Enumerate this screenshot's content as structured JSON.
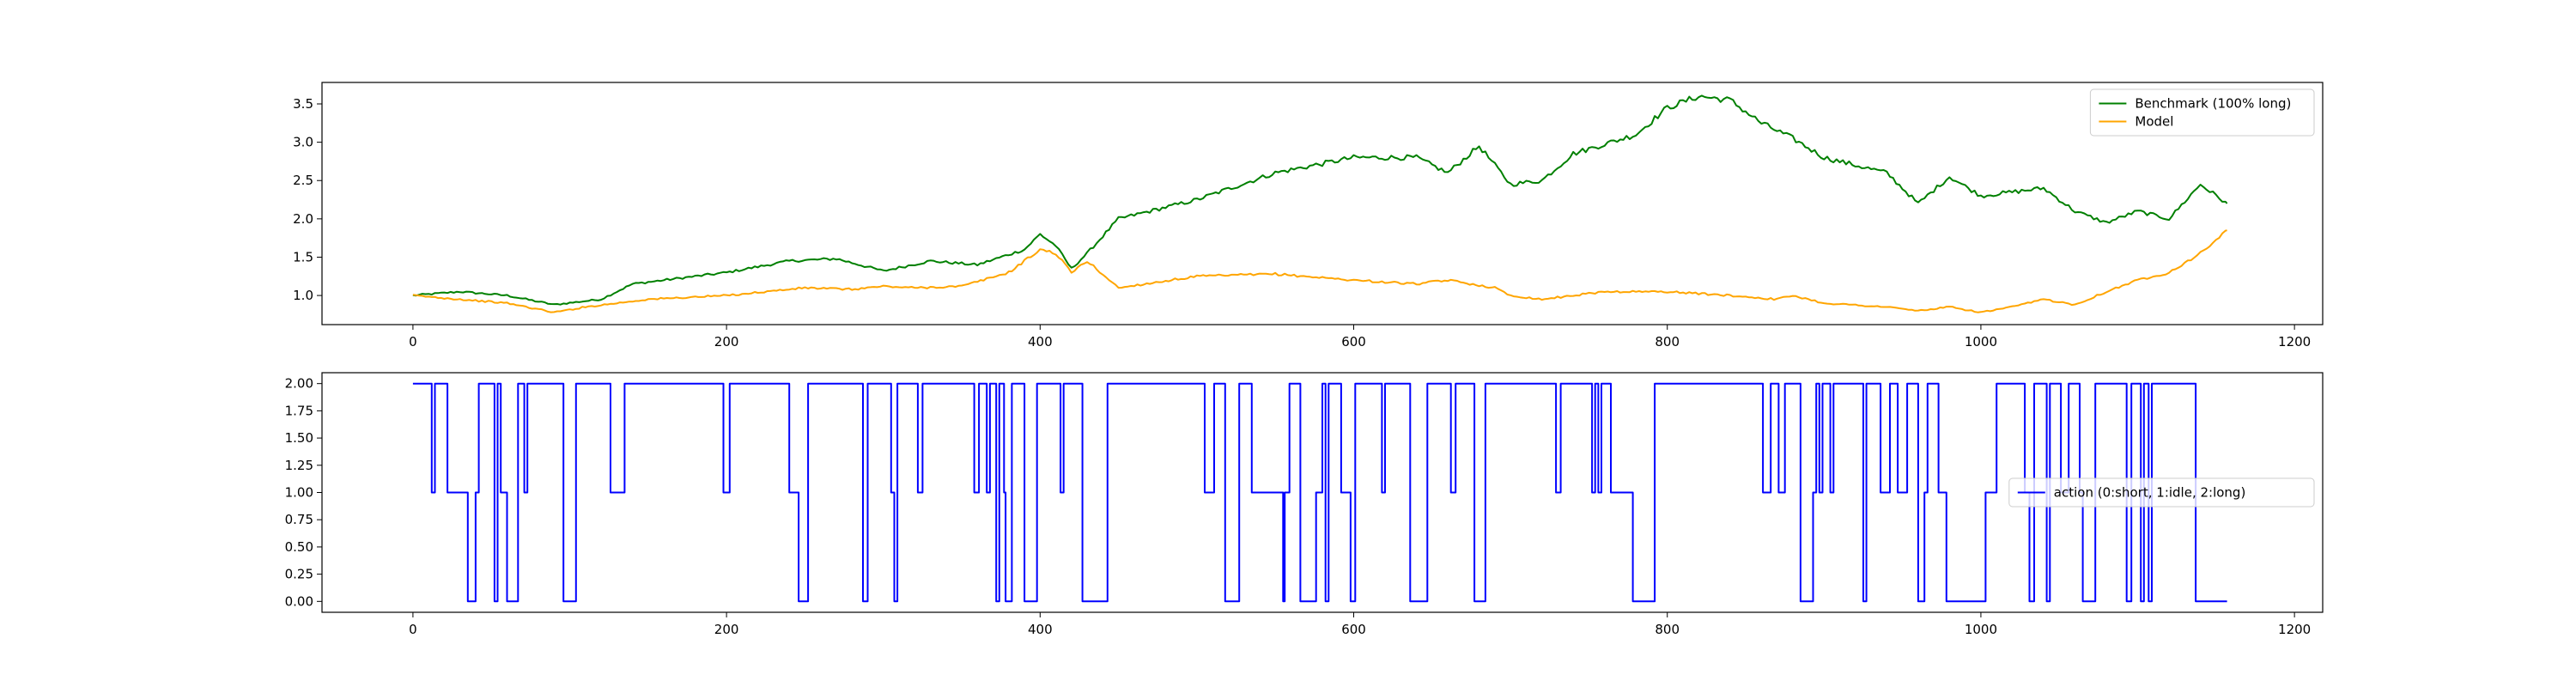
{
  "chart_data": [
    {
      "type": "line",
      "title": "",
      "xlabel": "",
      "ylabel": "",
      "xlim": [
        -58,
        1218
      ],
      "ylim": [
        0.62,
        3.78
      ],
      "xticks": [
        0,
        200,
        400,
        600,
        800,
        1000,
        1200
      ],
      "xtick_labels": [
        "0",
        "200",
        "400",
        "600",
        "800",
        "1000",
        "1200"
      ],
      "yticks": [
        1.0,
        1.5,
        2.0,
        2.5,
        3.0,
        3.5
      ],
      "ytick_labels": [
        "1.0",
        "1.5",
        "2.0",
        "2.5",
        "3.0",
        "3.5"
      ],
      "grid": false,
      "legend_position": "upper right",
      "series": [
        {
          "name": "Benchmark (100% long)",
          "color": "#008000",
          "x": [
            0,
            30,
            60,
            90,
            120,
            140,
            160,
            200,
            240,
            270,
            300,
            330,
            360,
            390,
            400,
            410,
            420,
            430,
            450,
            500,
            550,
            600,
            640,
            660,
            680,
            700,
            720,
            740,
            780,
            800,
            820,
            840,
            860,
            880,
            900,
            940,
            960,
            980,
            1000,
            1020,
            1040,
            1060,
            1080,
            1100,
            1120,
            1140,
            1157
          ],
          "y": [
            1.0,
            1.05,
            1.0,
            0.88,
            0.95,
            1.15,
            1.2,
            1.3,
            1.45,
            1.48,
            1.32,
            1.45,
            1.4,
            1.6,
            1.8,
            1.65,
            1.35,
            1.55,
            2.0,
            2.25,
            2.6,
            2.8,
            2.8,
            2.6,
            2.95,
            2.45,
            2.5,
            2.85,
            3.1,
            3.45,
            3.6,
            3.55,
            3.25,
            3.05,
            2.8,
            2.6,
            2.2,
            2.55,
            2.3,
            2.35,
            2.4,
            2.1,
            1.95,
            2.1,
            2.0,
            2.45,
            2.2
          ]
        },
        {
          "name": "Model",
          "color": "#ffa500",
          "x": [
            0,
            30,
            60,
            80,
            90,
            110,
            130,
            150,
            200,
            250,
            280,
            300,
            320,
            350,
            380,
            400,
            410,
            420,
            430,
            450,
            500,
            550,
            600,
            640,
            660,
            690,
            700,
            720,
            760,
            800,
            840,
            870,
            880,
            900,
            940,
            960,
            980,
            1000,
            1020,
            1040,
            1060,
            1080,
            1100,
            1120,
            1140,
            1157
          ],
          "y": [
            1.0,
            0.95,
            0.9,
            0.82,
            0.78,
            0.85,
            0.9,
            0.95,
            1.0,
            1.1,
            1.08,
            1.12,
            1.1,
            1.12,
            1.3,
            1.6,
            1.55,
            1.3,
            1.45,
            1.1,
            1.25,
            1.28,
            1.2,
            1.15,
            1.2,
            1.1,
            1.0,
            0.95,
            1.05,
            1.05,
            1.0,
            0.95,
            1.0,
            0.9,
            0.85,
            0.8,
            0.85,
            0.78,
            0.85,
            0.95,
            0.88,
            1.05,
            1.2,
            1.3,
            1.55,
            1.85
          ]
        }
      ]
    },
    {
      "type": "line",
      "title": "",
      "xlabel": "",
      "ylabel": "",
      "xlim": [
        -58,
        1218
      ],
      "ylim": [
        -0.1,
        2.1
      ],
      "xticks": [
        0,
        200,
        400,
        600,
        800,
        1000,
        1200
      ],
      "xtick_labels": [
        "0",
        "200",
        "400",
        "600",
        "800",
        "1000",
        "1200"
      ],
      "yticks": [
        0.0,
        0.25,
        0.5,
        0.75,
        1.0,
        1.25,
        1.5,
        1.75,
        2.0
      ],
      "ytick_labels": [
        "0.00",
        "0.25",
        "0.50",
        "0.75",
        "1.00",
        "1.25",
        "1.50",
        "1.75",
        "2.00"
      ],
      "grid": false,
      "legend_position": "center right",
      "series": [
        {
          "name": "action (0:short, 1:idle, 2:long)",
          "color": "#0000ff",
          "step_segments": [
            [
              0,
              2
            ],
            [
              12,
              1
            ],
            [
              14,
              2
            ],
            [
              22,
              1
            ],
            [
              35,
              0
            ],
            [
              40,
              1
            ],
            [
              42,
              2
            ],
            [
              52,
              0
            ],
            [
              54,
              2
            ],
            [
              56,
              1
            ],
            [
              60,
              0
            ],
            [
              67,
              2
            ],
            [
              71,
              1
            ],
            [
              73,
              2
            ],
            [
              96,
              0
            ],
            [
              104,
              2
            ],
            [
              126,
              1
            ],
            [
              135,
              2
            ],
            [
              198,
              1
            ],
            [
              202,
              2
            ],
            [
              240,
              1
            ],
            [
              246,
              0
            ],
            [
              252,
              2
            ],
            [
              287,
              0
            ],
            [
              290,
              2
            ],
            [
              305,
              1
            ],
            [
              307,
              0
            ],
            [
              309,
              2
            ],
            [
              322,
              1
            ],
            [
              325,
              2
            ],
            [
              358,
              1
            ],
            [
              361,
              2
            ],
            [
              366,
              1
            ],
            [
              368,
              2
            ],
            [
              372,
              0
            ],
            [
              374,
              2
            ],
            [
              377,
              1
            ],
            [
              378,
              0
            ],
            [
              382,
              2
            ],
            [
              390,
              0
            ],
            [
              398,
              2
            ],
            [
              413,
              1
            ],
            [
              415,
              2
            ],
            [
              427,
              0
            ],
            [
              443,
              2
            ],
            [
              505,
              1
            ],
            [
              511,
              2
            ],
            [
              518,
              0
            ],
            [
              527,
              2
            ],
            [
              535,
              1
            ],
            [
              555,
              0
            ],
            [
              556,
              1
            ],
            [
              559,
              2
            ],
            [
              566,
              0
            ],
            [
              576,
              1
            ],
            [
              580,
              2
            ],
            [
              582,
              0
            ],
            [
              584,
              2
            ],
            [
              592,
              1
            ],
            [
              598,
              0
            ],
            [
              601,
              2
            ],
            [
              618,
              1
            ],
            [
              620,
              2
            ],
            [
              636,
              0
            ],
            [
              647,
              2
            ],
            [
              662,
              1
            ],
            [
              665,
              2
            ],
            [
              677,
              0
            ],
            [
              684,
              2
            ],
            [
              729,
              1
            ],
            [
              732,
              2
            ],
            [
              752,
              1
            ],
            [
              754,
              2
            ],
            [
              756,
              1
            ],
            [
              758,
              2
            ],
            [
              764,
              1
            ],
            [
              778,
              0
            ],
            [
              792,
              2
            ],
            [
              861,
              1
            ],
            [
              866,
              2
            ],
            [
              871,
              1
            ],
            [
              875,
              2
            ],
            [
              885,
              0
            ],
            [
              893,
              1
            ],
            [
              895,
              2
            ],
            [
              897,
              1
            ],
            [
              899,
              2
            ],
            [
              904,
              1
            ],
            [
              906,
              2
            ],
            [
              925,
              0
            ],
            [
              927,
              2
            ],
            [
              936,
              1
            ],
            [
              942,
              2
            ],
            [
              947,
              1
            ],
            [
              953,
              2
            ],
            [
              960,
              0
            ],
            [
              964,
              1
            ],
            [
              966,
              2
            ],
            [
              973,
              1
            ],
            [
              978,
              0
            ],
            [
              1003,
              1
            ],
            [
              1010,
              2
            ],
            [
              1028,
              1
            ],
            [
              1031,
              0
            ],
            [
              1034,
              2
            ],
            [
              1042,
              0
            ],
            [
              1044,
              2
            ],
            [
              1051,
              1
            ],
            [
              1056,
              2
            ],
            [
              1063,
              1
            ],
            [
              1065,
              0
            ],
            [
              1073,
              2
            ],
            [
              1093,
              0
            ],
            [
              1096,
              2
            ],
            [
              1102,
              0
            ],
            [
              1104,
              2
            ],
            [
              1107,
              0
            ],
            [
              1109,
              2
            ],
            [
              1137,
              0
            ],
            [
              1157,
              0
            ]
          ]
        }
      ]
    }
  ]
}
